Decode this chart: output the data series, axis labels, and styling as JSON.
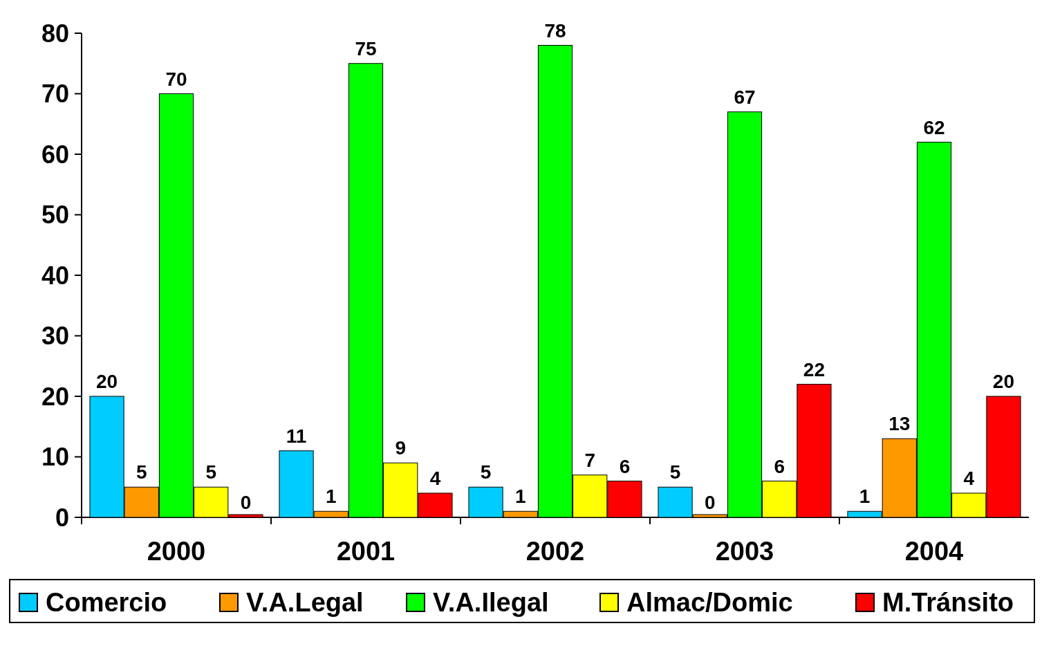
{
  "chart_data": {
    "type": "bar",
    "categories": [
      "2000",
      "2001",
      "2002",
      "2003",
      "2004"
    ],
    "series": [
      {
        "name": "Comercio",
        "color": "#00ccff",
        "values": [
          20,
          11,
          5,
          5,
          1
        ]
      },
      {
        "name": "V.A.Legal",
        "color": "#ff9900",
        "values": [
          5,
          1,
          1,
          0,
          13
        ]
      },
      {
        "name": "V.A.Ilegal",
        "color": "#00ff00",
        "values": [
          70,
          75,
          78,
          67,
          62
        ]
      },
      {
        "name": "Almac/Domic",
        "color": "#ffff00",
        "values": [
          5,
          9,
          7,
          6,
          4
        ]
      },
      {
        "name": "M.Tránsito",
        "color": "#ff0000",
        "values": [
          0,
          4,
          6,
          22,
          20
        ]
      }
    ],
    "ylim": [
      0,
      80
    ],
    "yticks": [
      0,
      10,
      20,
      30,
      40,
      50,
      60,
      70,
      80
    ],
    "data_labels": true,
    "legend": "bottom"
  }
}
